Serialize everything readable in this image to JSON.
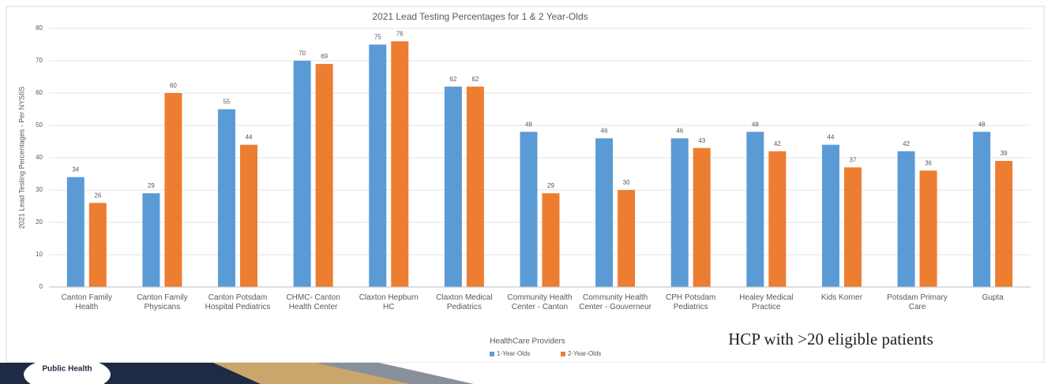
{
  "chart_data": {
    "type": "bar",
    "title": "2021 Lead Testing Percentages for 1 & 2 Year-Olds",
    "y_label": "2021 Lead Testing Percentages - Per NYSIIS",
    "x_label": "HealthCare Providers",
    "annotation": "HCP with >20 eligible patients",
    "footer": "Public Health",
    "categories": [
      "Canton Family Health",
      "Canton Family Physicans",
      "Canton Potsdam Hospital Pediatrics",
      "CHMC- Canton Health Center",
      "Claxton Hepburn HC",
      "Claxton Medical Pediatrics",
      "Community Health Center - Canton",
      "Community Health Center - Gouverneur",
      "CPH Potsdam Pediatrics",
      "Healey Medical Practice",
      "Kids Korner",
      "Potsdam Primary Care",
      "Gupta"
    ],
    "series": [
      {
        "name": "1-Year-Olds",
        "color": "#5b9bd5",
        "values": [
          34,
          29,
          55,
          70,
          75,
          62,
          48,
          46,
          46,
          48,
          44,
          42,
          48
        ]
      },
      {
        "name": "2-Year-Olds",
        "color": "#ed7d31",
        "values": [
          26,
          60,
          44,
          69,
          76,
          62,
          29,
          30,
          43,
          42,
          37,
          36,
          39
        ]
      }
    ],
    "ylim": [
      0,
      80
    ],
    "yticks": [
      0,
      10,
      20,
      30,
      40,
      50,
      60,
      70,
      80
    ],
    "grid": true,
    "legend": "bottom"
  }
}
